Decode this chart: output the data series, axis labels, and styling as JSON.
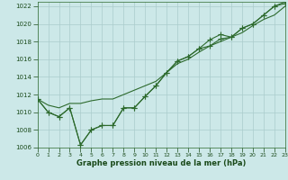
{
  "x": [
    0,
    1,
    2,
    3,
    4,
    5,
    6,
    7,
    8,
    9,
    10,
    11,
    12,
    13,
    14,
    15,
    16,
    17,
    18,
    19,
    20,
    21,
    22,
    23
  ],
  "line_actual": [
    1011.5,
    1010.0,
    1009.5,
    1010.5,
    1006.3,
    1008.0,
    1008.5,
    1008.5,
    1010.5,
    1010.5,
    1011.8,
    1013.0,
    1014.5,
    1015.8,
    1016.3,
    1017.2,
    1017.5,
    1018.3,
    1018.5,
    1019.5,
    1020.0,
    1021.0,
    1022.0,
    1022.3
  ],
  "line_envelope": [
    1011.5,
    1010.0,
    1009.5,
    1010.5,
    1006.3,
    1008.0,
    1008.5,
    1008.5,
    1010.5,
    1010.5,
    1011.8,
    1013.0,
    1014.5,
    1015.8,
    1016.3,
    1017.2,
    1018.2,
    1018.8,
    1018.5,
    1019.5,
    1020.0,
    1021.0,
    1022.0,
    1022.5
  ],
  "line_trend": [
    1011.5,
    1010.8,
    1010.5,
    1011.0,
    1011.0,
    1011.3,
    1011.5,
    1011.5,
    1012.0,
    1012.5,
    1013.0,
    1013.5,
    1014.5,
    1015.5,
    1016.0,
    1016.8,
    1017.5,
    1018.0,
    1018.5,
    1019.0,
    1019.8,
    1020.5,
    1021.0,
    1022.0
  ],
  "ylim": [
    1006,
    1022.5
  ],
  "ytick_min": 1006,
  "ytick_max": 1022,
  "ytick_step": 2,
  "xlim": [
    0,
    23
  ],
  "xticks": [
    0,
    1,
    2,
    3,
    4,
    5,
    6,
    7,
    8,
    9,
    10,
    11,
    12,
    13,
    14,
    15,
    16,
    17,
    18,
    19,
    20,
    21,
    22,
    23
  ],
  "xlabel": "Graphe pression niveau de la mer (hPa)",
  "line_color": "#2d6a2d",
  "bg_color": "#cce8e8",
  "grid_color": "#aacccc",
  "marker": "+",
  "marker_size": 4,
  "linewidth": 0.8,
  "tick_fontsize": 5,
  "xlabel_fontsize": 6,
  "label_color": "#1a4a1a"
}
